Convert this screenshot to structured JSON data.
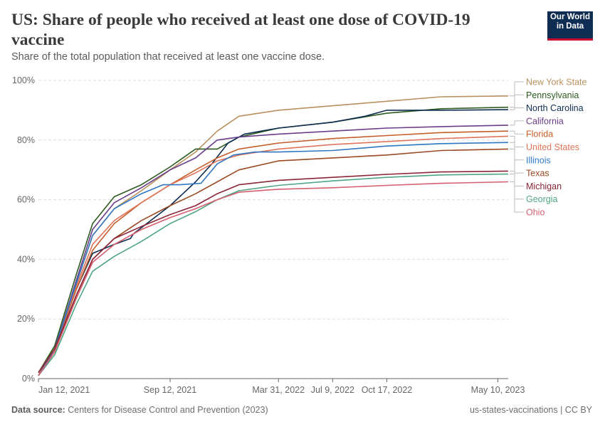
{
  "header": {
    "title": "US: Share of people who received at least one dose of COVID-19 vaccine",
    "subtitle": "Share of the total population that received at least one vaccine dose."
  },
  "logo": {
    "line1": "Our World",
    "line2": "in Data"
  },
  "footer": {
    "source_label": "Data source:",
    "source_text": "Centers for Disease Control and Prevention (2023)",
    "slug": "us-states-vaccinations | CC BY"
  },
  "colors": {
    "grid": "#dddddd",
    "axis": "#666666",
    "tick_text": "#666666"
  },
  "chart_data": {
    "type": "line",
    "title": "US: Share of people who received at least one dose of COVID-19 vaccine",
    "ylabel": "",
    "xlabel": "",
    "ylim": [
      0,
      100
    ],
    "yticks": [
      0,
      20,
      40,
      60,
      80,
      100
    ],
    "ytick_labels": [
      "0%",
      "20%",
      "40%",
      "60%",
      "80%",
      "100%"
    ],
    "xlim_days": [
      0,
      867
    ],
    "xticks": [
      {
        "label": "Jan 12, 2021",
        "day": 0
      },
      {
        "label": "Sep 12, 2021",
        "day": 243
      },
      {
        "label": "Mar 31, 2022",
        "day": 443
      },
      {
        "label": "Jul 9, 2022",
        "day": 543
      },
      {
        "label": "Oct 17, 2022",
        "day": 643
      },
      {
        "label": "May 10, 2023",
        "day": 848
      }
    ],
    "x_unit": "days since Jan 12, 2021",
    "legend_placement": "right",
    "series": [
      {
        "name": "New York State",
        "color": "#b8905e",
        "points": [
          [
            0,
            2
          ],
          [
            30,
            10
          ],
          [
            70,
            32
          ],
          [
            100,
            48
          ],
          [
            140,
            57
          ],
          [
            190,
            63
          ],
          [
            243,
            70
          ],
          [
            290,
            76
          ],
          [
            330,
            83
          ],
          [
            370,
            88
          ],
          [
            443,
            90
          ],
          [
            543,
            91.5
          ],
          [
            643,
            93
          ],
          [
            743,
            94.5
          ],
          [
            867,
            94.8
          ]
        ]
      },
      {
        "name": "Pennsylvania",
        "color": "#2d5b1f",
        "points": [
          [
            0,
            2
          ],
          [
            30,
            11
          ],
          [
            70,
            35
          ],
          [
            100,
            52
          ],
          [
            140,
            61
          ],
          [
            190,
            65
          ],
          [
            243,
            71
          ],
          [
            290,
            77
          ],
          [
            330,
            77
          ],
          [
            370,
            81
          ],
          [
            443,
            84
          ],
          [
            543,
            86
          ],
          [
            643,
            89
          ],
          [
            743,
            90.5
          ],
          [
            867,
            91
          ]
        ]
      },
      {
        "name": "North Carolina",
        "color": "#0f2d52",
        "points": [
          [
            0,
            1
          ],
          [
            30,
            10
          ],
          [
            70,
            30
          ],
          [
            100,
            42
          ],
          [
            140,
            45
          ],
          [
            170,
            47
          ],
          [
            175,
            48.5
          ],
          [
            200,
            52
          ],
          [
            243,
            58
          ],
          [
            290,
            66
          ],
          [
            320,
            72
          ],
          [
            350,
            79
          ],
          [
            380,
            82
          ],
          [
            443,
            84
          ],
          [
            543,
            86
          ],
          [
            603,
            88
          ],
          [
            643,
            90
          ],
          [
            743,
            90
          ],
          [
            867,
            90.2
          ]
        ]
      },
      {
        "name": "California",
        "color": "#6a3d8a",
        "points": [
          [
            0,
            1
          ],
          [
            30,
            10
          ],
          [
            70,
            33
          ],
          [
            100,
            50
          ],
          [
            140,
            59
          ],
          [
            190,
            64
          ],
          [
            243,
            70
          ],
          [
            290,
            74
          ],
          [
            330,
            80
          ],
          [
            370,
            81
          ],
          [
            443,
            82
          ],
          [
            543,
            83
          ],
          [
            643,
            84
          ],
          [
            743,
            84.5
          ],
          [
            867,
            85
          ]
        ]
      },
      {
        "name": "Florida",
        "color": "#c45e2b",
        "points": [
          [
            0,
            2
          ],
          [
            30,
            10
          ],
          [
            70,
            30
          ],
          [
            100,
            43
          ],
          [
            140,
            52
          ],
          [
            190,
            59
          ],
          [
            243,
            65
          ],
          [
            290,
            70
          ],
          [
            330,
            74
          ],
          [
            370,
            77
          ],
          [
            443,
            79
          ],
          [
            543,
            80.5
          ],
          [
            643,
            81.5
          ],
          [
            743,
            82.5
          ],
          [
            867,
            83
          ]
        ]
      },
      {
        "name": "United States",
        "color": "#e0745a",
        "points": [
          [
            0,
            2
          ],
          [
            30,
            10
          ],
          [
            70,
            31
          ],
          [
            100,
            45
          ],
          [
            140,
            53
          ],
          [
            190,
            59
          ],
          [
            243,
            65
          ],
          [
            290,
            69
          ],
          [
            330,
            73
          ],
          [
            370,
            75
          ],
          [
            443,
            77
          ],
          [
            543,
            78.5
          ],
          [
            643,
            79.5
          ],
          [
            743,
            80.5
          ],
          [
            867,
            81.3
          ]
        ]
      },
      {
        "name": "Illinois",
        "color": "#2f77c2",
        "points": [
          [
            0,
            1
          ],
          [
            30,
            10
          ],
          [
            70,
            32
          ],
          [
            100,
            48
          ],
          [
            140,
            57
          ],
          [
            190,
            62
          ],
          [
            230,
            65
          ],
          [
            260,
            65
          ],
          [
            300,
            65.5
          ],
          [
            330,
            72
          ],
          [
            360,
            75
          ],
          [
            400,
            76
          ],
          [
            443,
            76
          ],
          [
            543,
            76.5
          ],
          [
            643,
            78
          ],
          [
            743,
            78.8
          ],
          [
            867,
            79.2
          ]
        ]
      },
      {
        "name": "Texas",
        "color": "#9a4a23",
        "points": [
          [
            0,
            1
          ],
          [
            30,
            9
          ],
          [
            70,
            28
          ],
          [
            100,
            40
          ],
          [
            140,
            47
          ],
          [
            190,
            53
          ],
          [
            243,
            58
          ],
          [
            290,
            62
          ],
          [
            330,
            66
          ],
          [
            370,
            70
          ],
          [
            443,
            73
          ],
          [
            543,
            74
          ],
          [
            643,
            75
          ],
          [
            743,
            76.5
          ],
          [
            867,
            77
          ]
        ]
      },
      {
        "name": "Michigan",
        "color": "#8a2535",
        "points": [
          [
            0,
            2
          ],
          [
            30,
            10
          ],
          [
            70,
            28
          ],
          [
            100,
            40
          ],
          [
            140,
            47
          ],
          [
            190,
            51
          ],
          [
            243,
            55
          ],
          [
            290,
            58
          ],
          [
            330,
            62
          ],
          [
            370,
            65
          ],
          [
            443,
            66.5
          ],
          [
            543,
            67.5
          ],
          [
            643,
            68.5
          ],
          [
            743,
            69.3
          ],
          [
            867,
            69.6
          ]
        ]
      },
      {
        "name": "Georgia",
        "color": "#4fa582",
        "points": [
          [
            0,
            1
          ],
          [
            30,
            8
          ],
          [
            70,
            25
          ],
          [
            100,
            36
          ],
          [
            140,
            41
          ],
          [
            190,
            46
          ],
          [
            243,
            52
          ],
          [
            290,
            56
          ],
          [
            330,
            60
          ],
          [
            370,
            63
          ],
          [
            443,
            64.8
          ],
          [
            543,
            66.3
          ],
          [
            643,
            67.5
          ],
          [
            743,
            68.3
          ],
          [
            867,
            68.6
          ]
        ]
      },
      {
        "name": "Ohio",
        "color": "#d55e6f",
        "points": [
          [
            0,
            1
          ],
          [
            30,
            9
          ],
          [
            70,
            27
          ],
          [
            100,
            39
          ],
          [
            140,
            45
          ],
          [
            190,
            50
          ],
          [
            243,
            54
          ],
          [
            290,
            57
          ],
          [
            330,
            60
          ],
          [
            370,
            62.5
          ],
          [
            443,
            63.5
          ],
          [
            543,
            64
          ],
          [
            643,
            64.8
          ],
          [
            743,
            65.5
          ],
          [
            867,
            66
          ]
        ]
      }
    ]
  }
}
